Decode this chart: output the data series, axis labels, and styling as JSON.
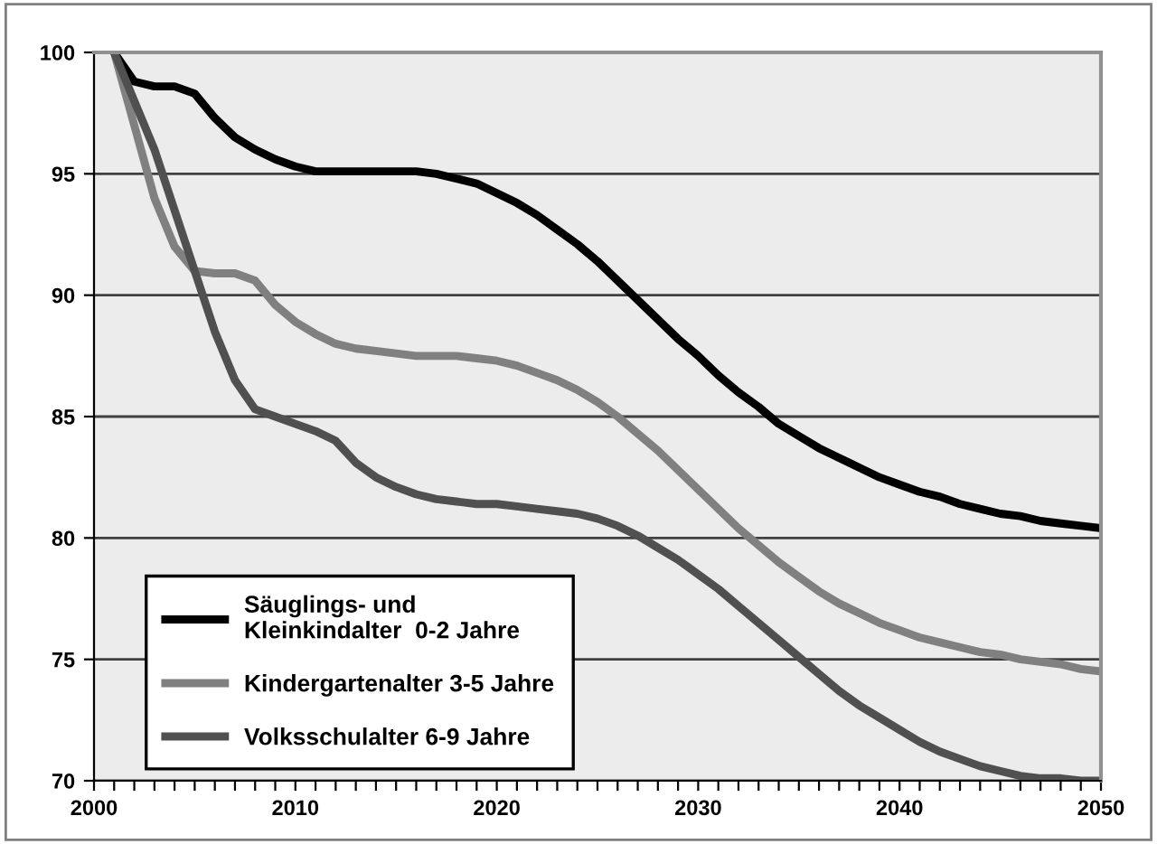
{
  "chart_data": {
    "type": "line",
    "x": [
      2001,
      2002,
      2003,
      2004,
      2005,
      2006,
      2007,
      2008,
      2009,
      2010,
      2011,
      2012,
      2013,
      2014,
      2015,
      2016,
      2017,
      2018,
      2019,
      2020,
      2021,
      2022,
      2023,
      2024,
      2025,
      2026,
      2027,
      2028,
      2029,
      2030,
      2031,
      2032,
      2033,
      2034,
      2035,
      2036,
      2037,
      2038,
      2039,
      2040,
      2041,
      2042,
      2043,
      2044,
      2045,
      2046,
      2047,
      2048,
      2049,
      2050
    ],
    "series": [
      {
        "name": "Säuglings- und\nKleinkindalter  0-2 Jahre",
        "color": "#000000",
        "values": [
          100,
          98.8,
          98.6,
          98.6,
          98.3,
          97.3,
          96.5,
          96.0,
          95.6,
          95.3,
          95.1,
          95.1,
          95.1,
          95.1,
          95.1,
          95.1,
          95.0,
          94.8,
          94.6,
          94.2,
          93.8,
          93.3,
          92.7,
          92.1,
          91.4,
          90.6,
          89.8,
          89.0,
          88.2,
          87.5,
          86.7,
          86.0,
          85.4,
          84.7,
          84.2,
          83.7,
          83.3,
          82.9,
          82.5,
          82.2,
          81.9,
          81.7,
          81.4,
          81.2,
          81.0,
          80.9,
          80.7,
          80.6,
          80.5,
          80.4
        ]
      },
      {
        "name": "Kindergartenalter 3-5 Jahre",
        "color": "#808080",
        "values": [
          100,
          97,
          94,
          92,
          91,
          90.9,
          90.9,
          90.6,
          89.6,
          88.9,
          88.4,
          88.0,
          87.8,
          87.7,
          87.6,
          87.5,
          87.5,
          87.5,
          87.4,
          87.3,
          87.1,
          86.8,
          86.5,
          86.1,
          85.6,
          85.0,
          84.3,
          83.6,
          82.8,
          82.0,
          81.2,
          80.4,
          79.7,
          79.0,
          78.4,
          77.8,
          77.3,
          76.9,
          76.5,
          76.2,
          75.9,
          75.7,
          75.5,
          75.3,
          75.2,
          75.0,
          74.9,
          74.8,
          74.6,
          74.5
        ]
      },
      {
        "name": "Volksschulalter 6-9 Jahre",
        "color": "#505050",
        "values": [
          100,
          98,
          96,
          93.5,
          91,
          88.5,
          86.5,
          85.3,
          85.0,
          84.7,
          84.4,
          84.0,
          83.1,
          82.5,
          82.1,
          81.8,
          81.6,
          81.5,
          81.4,
          81.4,
          81.3,
          81.2,
          81.1,
          81.0,
          80.8,
          80.5,
          80.1,
          79.6,
          79.1,
          78.5,
          77.9,
          77.2,
          76.5,
          75.8,
          75.1,
          74.4,
          73.7,
          73.1,
          72.6,
          72.1,
          71.6,
          71.2,
          70.9,
          70.6,
          70.4,
          70.2,
          70.1,
          70.1,
          70.0,
          70.0
        ]
      }
    ],
    "xlim": [
      2000,
      2050
    ],
    "xticks": [
      2000,
      {
        "value": 2001,
        "label": null
      },
      {
        "value": 2002,
        "label": null
      },
      {
        "value": 2003,
        "label": null
      },
      {
        "value": 2004,
        "label": null
      },
      {
        "value": 2005,
        "label": null
      },
      {
        "value": 2006,
        "label": null
      },
      {
        "value": 2007,
        "label": null
      },
      {
        "value": 2008,
        "label": null
      },
      {
        "value": 2009,
        "label": null
      },
      2010,
      {
        "value": 2011,
        "label": null
      },
      {
        "value": 2012,
        "label": null
      },
      {
        "value": 2013,
        "label": null
      },
      {
        "value": 2014,
        "label": null
      },
      {
        "value": 2015,
        "label": null
      },
      {
        "value": 2016,
        "label": null
      },
      {
        "value": 2017,
        "label": null
      },
      {
        "value": 2018,
        "label": null
      },
      {
        "value": 2019,
        "label": null
      },
      2020,
      {
        "value": 2021,
        "label": null
      },
      {
        "value": 2022,
        "label": null
      },
      {
        "value": 2023,
        "label": null
      },
      {
        "value": 2024,
        "label": null
      },
      {
        "value": 2025,
        "label": null
      },
      {
        "value": 2026,
        "label": null
      },
      {
        "value": 2027,
        "label": null
      },
      {
        "value": 2028,
        "label": null
      },
      {
        "value": 2029,
        "label": null
      },
      2030,
      {
        "value": 2031,
        "label": null
      },
      {
        "value": 2032,
        "label": null
      },
      {
        "value": 2033,
        "label": null
      },
      {
        "value": 2034,
        "label": null
      },
      {
        "value": 2035,
        "label": null
      },
      {
        "value": 2036,
        "label": null
      },
      {
        "value": 2037,
        "label": null
      },
      {
        "value": 2038,
        "label": null
      },
      {
        "value": 2039,
        "label": null
      },
      2040,
      {
        "value": 2041,
        "label": null
      },
      {
        "value": 2042,
        "label": null
      },
      {
        "value": 2043,
        "label": null
      },
      {
        "value": 2044,
        "label": null
      },
      {
        "value": 2045,
        "label": null
      },
      {
        "value": 2046,
        "label": null
      },
      {
        "value": 2047,
        "label": null
      },
      {
        "value": 2048,
        "label": null
      },
      {
        "value": 2049,
        "label": null
      },
      2050
    ],
    "ylim": [
      70,
      100
    ],
    "yticks": [
      70,
      75,
      80,
      85,
      90,
      95,
      100
    ],
    "grid": "y",
    "legend": "bottom left",
    "line_style": "solid",
    "marker": "none"
  }
}
